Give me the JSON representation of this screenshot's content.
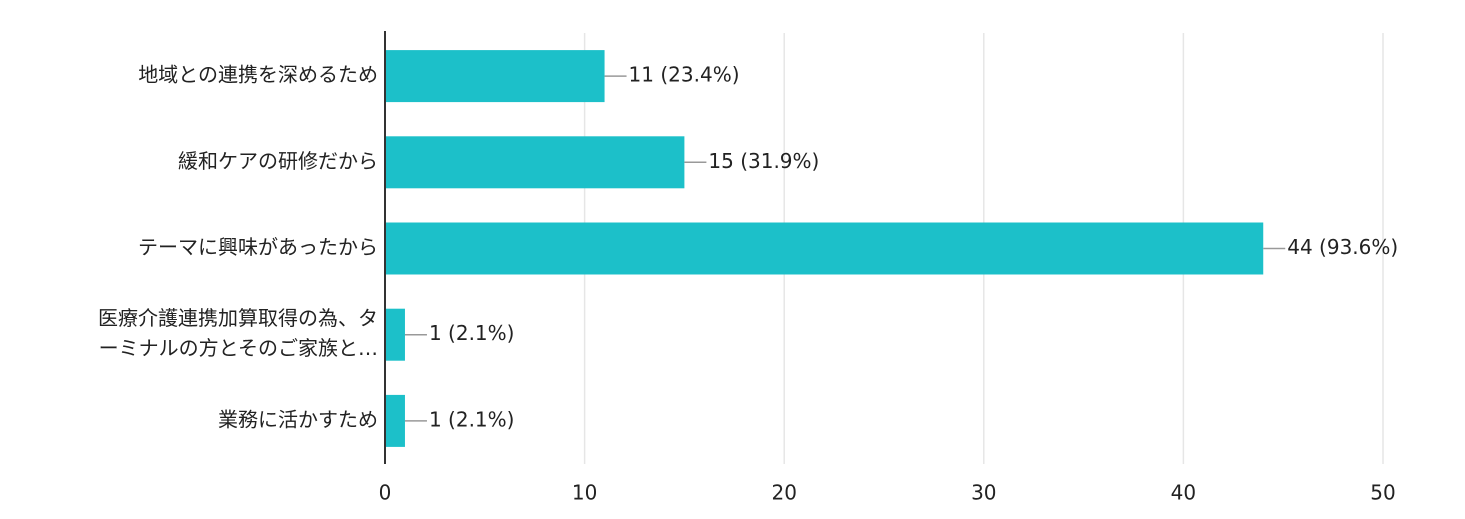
{
  "chart_data": {
    "type": "hbar",
    "categories": [
      "地域との連携を深めるため",
      "緩和ケアの研修だから",
      "テーマに興味があったから",
      [
        "医療介護連携加算取得の為、タ",
        "ーミナルの方とそのご家族と…"
      ],
      "業務に活かすため"
    ],
    "values": [
      11,
      15,
      44,
      1,
      1
    ],
    "value_labels": [
      "11 (23.4%)",
      "15 (31.9%)",
      "44 (93.6%)",
      "1 (2.1%)",
      "1 (2.1%)"
    ],
    "color": "#1cc0c9",
    "xlim": [
      0,
      50
    ],
    "xticks": [
      0,
      10,
      20,
      30,
      40,
      50
    ],
    "grid": true
  }
}
